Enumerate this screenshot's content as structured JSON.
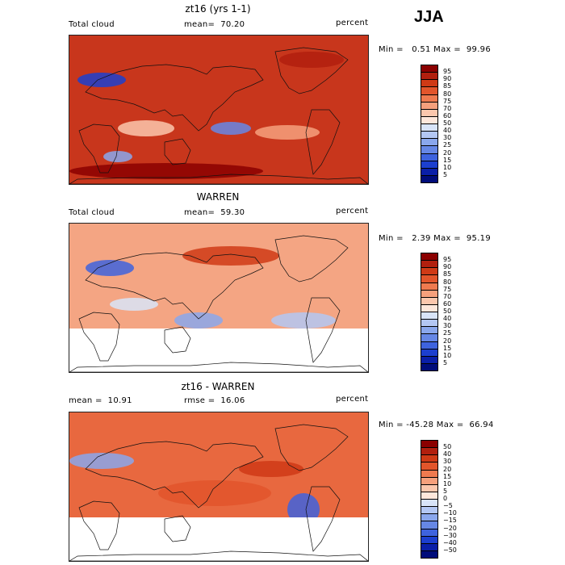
{
  "season": "JJA",
  "panels": [
    {
      "title": "zt16 (yrs 1-1)",
      "left_label": "Total cloud",
      "mid_label": "mean=  70.20",
      "right_label": "percent",
      "minmax": "Min =   0.51 Max =  99.96",
      "base_color": "#c8361c",
      "colorbar": {
        "labels": [
          "95",
          "90",
          "85",
          "80",
          "75",
          "70",
          "60",
          "50",
          "40",
          "30",
          "25",
          "20",
          "15",
          "10",
          "5"
        ],
        "colors": [
          "#8b0000",
          "#b11f0e",
          "#cf3a16",
          "#e2552b",
          "#ef7a4f",
          "#f6a07c",
          "#fbc7ad",
          "#fde7db",
          "#d8e4f8",
          "#b3c7f3",
          "#8aa7ec",
          "#6687e5",
          "#3e63de",
          "#1c3fcf",
          "#0a1fa8",
          "#000c7a"
        ]
      }
    },
    {
      "title": "WARREN",
      "left_label": "Total cloud",
      "mid_label": "mean=  59.30",
      "right_label": "percent",
      "minmax": "Min =   2.39 Max =  95.19",
      "base_color": "#f4a583",
      "colorbar": {
        "labels": [
          "95",
          "90",
          "85",
          "80",
          "75",
          "70",
          "60",
          "50",
          "40",
          "30",
          "25",
          "20",
          "15",
          "10",
          "5"
        ],
        "colors": [
          "#8b0000",
          "#b11f0e",
          "#cf3a16",
          "#e2552b",
          "#ef7a4f",
          "#f6a07c",
          "#fbc7ad",
          "#fde7db",
          "#d8e4f8",
          "#b3c7f3",
          "#8aa7ec",
          "#6687e5",
          "#3e63de",
          "#1c3fcf",
          "#0a1fa8",
          "#000c7a"
        ]
      }
    },
    {
      "title": "zt16 - WARREN",
      "left_label": "mean =  10.91",
      "mid_label": "rmse =  16.06",
      "right_label": "percent",
      "minmax": "Min = -45.28 Max =  66.94",
      "base_color": "#e8683f",
      "colorbar": {
        "labels": [
          "50",
          "40",
          "30",
          "20",
          "15",
          "10",
          "5",
          "0",
          "−5",
          "−10",
          "−15",
          "−20",
          "−30",
          "−40",
          "−50"
        ],
        "colors": [
          "#8b0000",
          "#b11f0e",
          "#cf3a16",
          "#e2552b",
          "#ef7a4f",
          "#f6a07c",
          "#fbc7ad",
          "#fde7db",
          "#d8e4f8",
          "#b3c7f3",
          "#8aa7ec",
          "#6687e5",
          "#3e63de",
          "#1c3fcf",
          "#0a1fa8",
          "#000c7a"
        ]
      }
    }
  ]
}
